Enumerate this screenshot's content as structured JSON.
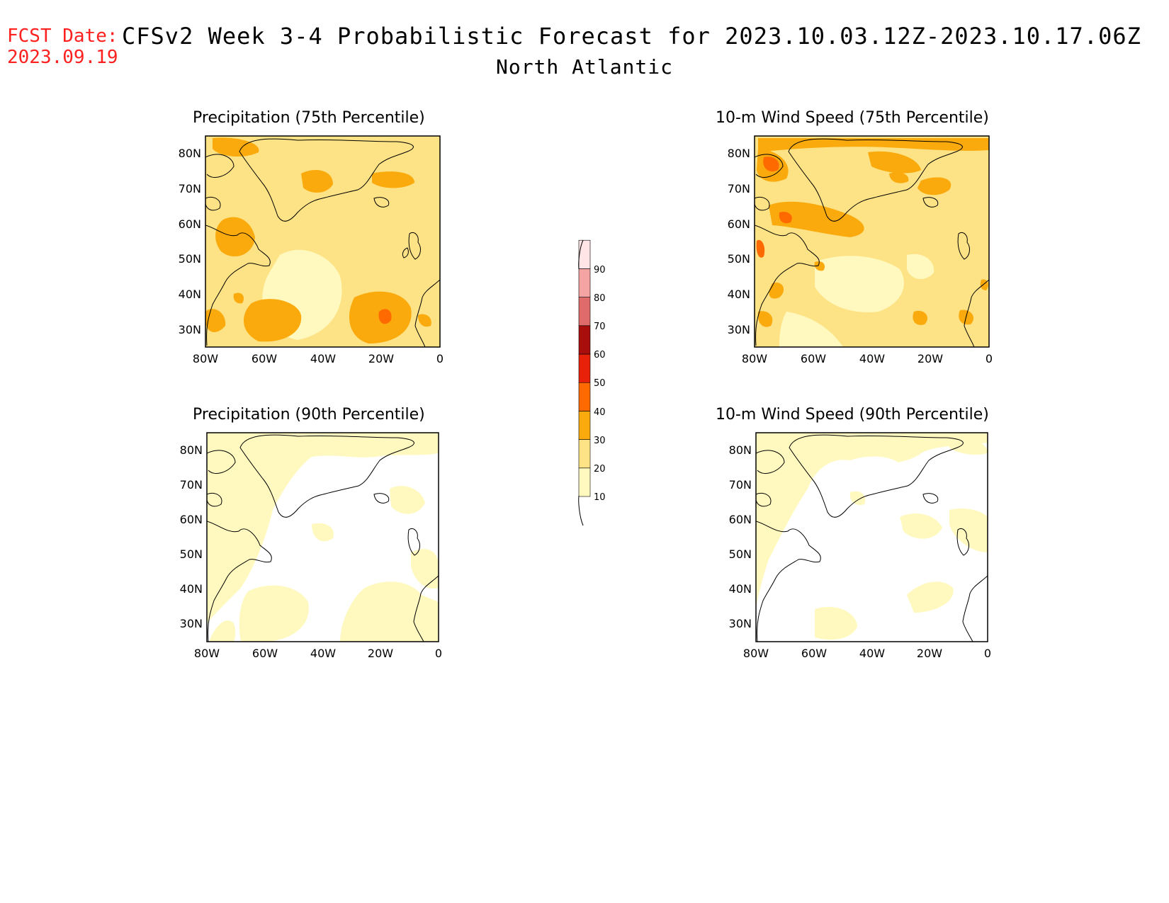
{
  "header": {
    "fcst_label": "FCST Date:",
    "fcst_date": "2023.09.19",
    "title": "CFSv2 Week 3-4 Probabilistic Forecast for 2023.10.03.12Z-2023.10.17.06Z",
    "subtitle": "North Atlantic"
  },
  "axes": {
    "lat_ticks": [
      "80N",
      "70N",
      "60N",
      "50N",
      "40N",
      "30N"
    ],
    "lon_ticks": [
      "80W",
      "60W",
      "40W",
      "20W",
      "0"
    ],
    "lat_range": [
      25,
      85
    ],
    "lon_range": [
      -80,
      0
    ]
  },
  "panels": [
    {
      "id": "p1",
      "title": "Precipitation (75th Percentile)",
      "background": "#fde385"
    },
    {
      "id": "p2",
      "title": "10-m Wind Speed (75th Percentile)",
      "background": "#fde385"
    },
    {
      "id": "p3",
      "title": "Precipitation (90th Percentile)",
      "background": "#ffffff"
    },
    {
      "id": "p4",
      "title": "10-m Wind Speed (90th Percentile)",
      "background": "#ffffff"
    }
  ],
  "colorbar": {
    "levels": [
      "10",
      "20",
      "30",
      "40",
      "50",
      "60",
      "70",
      "80",
      "90"
    ],
    "colors": [
      "#fff9bf",
      "#fde385",
      "#fbaa0d",
      "#ff6a00",
      "#e8220a",
      "#a80f0c",
      "#df6b6b",
      "#f5a4a4",
      "#ffe5e5"
    ]
  }
}
